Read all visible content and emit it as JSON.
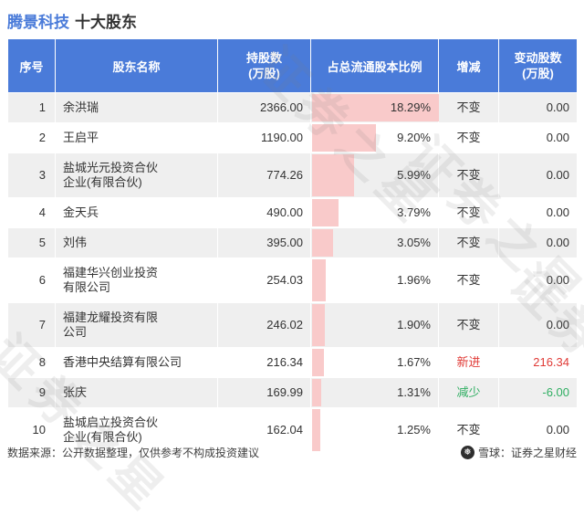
{
  "page": {
    "title_stock": "腾景科技",
    "title_suffix": "十大股东",
    "watermark": "证券之星",
    "footer_note": "数据来源：公开数据整理，仅供参考不构成投资建议",
    "footer_brand": "雪球：证券之星财经"
  },
  "icons": {
    "snowball": "❅"
  },
  "colors": {
    "header_bg": "#4a7bd9",
    "title_blue": "#4a7bd9",
    "bar_pink": "#f9caca",
    "up_red": "#e03a36",
    "down_green": "#2fae62",
    "row_alt": "#efefef",
    "text": "#333333",
    "watermark": "rgba(120,120,120,0.13)"
  },
  "table_headers": {
    "seq": "序号",
    "name": "股东名称",
    "shares_line1": "持股数",
    "shares_line2": "(万股)",
    "pct": "占总流通股本比例",
    "change": "增减",
    "delta_line1": "变动股数",
    "delta_line2": "(万股)"
  },
  "chart_data": {
    "type": "table",
    "title": "腾景科技 十大股东",
    "columns": [
      "序号",
      "股东名称",
      "持股数(万股)",
      "占总流通股本比例",
      "增减",
      "变动股数(万股)"
    ],
    "bar_field": "占总流通股本比例",
    "bar_max_pct": 18.29,
    "rows": [
      {
        "seq": "1",
        "name": "余洪瑞",
        "shares": "2366.00",
        "pct": "18.29%",
        "pct_value": 18.29,
        "change": "不变",
        "delta": "0.00",
        "status": "flat"
      },
      {
        "seq": "2",
        "name": "王启平",
        "shares": "1190.00",
        "pct": "9.20%",
        "pct_value": 9.2,
        "change": "不变",
        "delta": "0.00",
        "status": "flat"
      },
      {
        "seq": "3",
        "name": "盐城光元投资合伙企业(有限合伙)",
        "shares": "774.26",
        "pct": "5.99%",
        "pct_value": 5.99,
        "change": "不变",
        "delta": "0.00",
        "status": "flat"
      },
      {
        "seq": "4",
        "name": "金天兵",
        "shares": "490.00",
        "pct": "3.79%",
        "pct_value": 3.79,
        "change": "不变",
        "delta": "0.00",
        "status": "flat"
      },
      {
        "seq": "5",
        "name": "刘伟",
        "shares": "395.00",
        "pct": "3.05%",
        "pct_value": 3.05,
        "change": "不变",
        "delta": "0.00",
        "status": "flat"
      },
      {
        "seq": "6",
        "name": "福建华兴创业投资有限公司",
        "shares": "254.03",
        "pct": "1.96%",
        "pct_value": 1.96,
        "change": "不变",
        "delta": "0.00",
        "status": "flat"
      },
      {
        "seq": "7",
        "name": "福建龙耀投资有限公司",
        "shares": "246.02",
        "pct": "1.90%",
        "pct_value": 1.9,
        "change": "不变",
        "delta": "0.00",
        "status": "flat"
      },
      {
        "seq": "8",
        "name": "香港中央结算有限公司",
        "shares": "216.34",
        "pct": "1.67%",
        "pct_value": 1.67,
        "change": "新进",
        "delta": "216.34",
        "status": "up"
      },
      {
        "seq": "9",
        "name": "张庆",
        "shares": "169.99",
        "pct": "1.31%",
        "pct_value": 1.31,
        "change": "减少",
        "delta": "-6.00",
        "status": "down"
      },
      {
        "seq": "10",
        "name": "盐城启立投资合伙企业(有限合伙)",
        "shares": "162.04",
        "pct": "1.25%",
        "pct_value": 1.25,
        "change": "不变",
        "delta": "0.00",
        "status": "flat"
      }
    ]
  }
}
